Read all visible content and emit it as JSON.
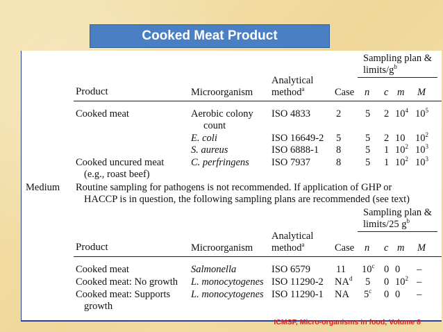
{
  "title": "Cooked Meat Product",
  "footer": "ICMSF, Micro-organisms in food, Volume 8",
  "table1": {
    "plan_header": [
      "Sampling plan &",
      "limits/g"
    ],
    "plan_header_sup": "b",
    "analytical": "Analytical",
    "method": "method",
    "method_sup": "a",
    "col_product": "Product",
    "col_micro": "Microorganism",
    "col_case": "Case",
    "col_n": "n",
    "col_c": "c",
    "col_m": "m",
    "col_M": "M",
    "rows": [
      {
        "product": "Cooked meat",
        "micro": "Aerobic colony",
        "micro2": "count",
        "method": "ISO 4833",
        "case": "2",
        "n": "5",
        "c": "2",
        "m": "10",
        "m_sup": "4",
        "M": "10",
        "M_sup": "5"
      },
      {
        "product": "",
        "micro": "E. coli",
        "method": "ISO 16649-2",
        "case": "5",
        "n": "5",
        "c": "2",
        "m": "10",
        "m_sup": "",
        "M": "10",
        "M_sup": "2"
      },
      {
        "product": "",
        "micro": "S. aureus",
        "method": "ISO 6888-1",
        "case": "8",
        "n": "5",
        "c": "1",
        "m": "10",
        "m_sup": "2",
        "M": "10",
        "M_sup": "3"
      },
      {
        "product": "Cooked uncured meat",
        "product2": "(e.g., roast beef)",
        "micro": "C. perfringens",
        "method": "ISO 7937",
        "case": "8",
        "n": "5",
        "c": "1",
        "m": "10",
        "m_sup": "2",
        "M": "10",
        "M_sup": "3"
      }
    ]
  },
  "medium": {
    "label": "Medium",
    "line1": "Routine sampling for pathogens is not recommended. If application of GHP or",
    "line2": "HACCP is in question, the following sampling plans are recommended (see text)"
  },
  "table2": {
    "plan_header": [
      "Sampling plan &",
      "limits/25 g"
    ],
    "plan_header_sup": "b",
    "analytical": "Analytical",
    "method": "method",
    "method_sup": "a",
    "col_product": "Product",
    "col_micro": "Microorganism",
    "col_case": "Case",
    "col_n": "n",
    "col_c": "c",
    "col_m": "m",
    "col_M": "M",
    "rows": [
      {
        "product": "Cooked meat",
        "micro": "Salmonella",
        "method": "ISO 6579",
        "case": "11",
        "case_sup": "",
        "n": "10",
        "n_sup": "c",
        "c": "0",
        "m": "0",
        "m_sup": "",
        "M": "–"
      },
      {
        "product": "Cooked meat: No growth",
        "micro": "L. monocytogenes",
        "method": "ISO 11290-2",
        "case": "NA",
        "case_sup": "d",
        "n": "5",
        "n_sup": "",
        "c": "0",
        "m": "10",
        "m_sup": "2",
        "M": "–"
      },
      {
        "product": "Cooked meat: Supports",
        "product2": "growth",
        "micro": "L. monocytogenes",
        "method": "ISO 11290-1",
        "case": "NA",
        "case_sup": "",
        "n": "5",
        "n_sup": "c",
        "c": "0",
        "m": "0",
        "m_sup": "",
        "M": "–"
      }
    ]
  }
}
